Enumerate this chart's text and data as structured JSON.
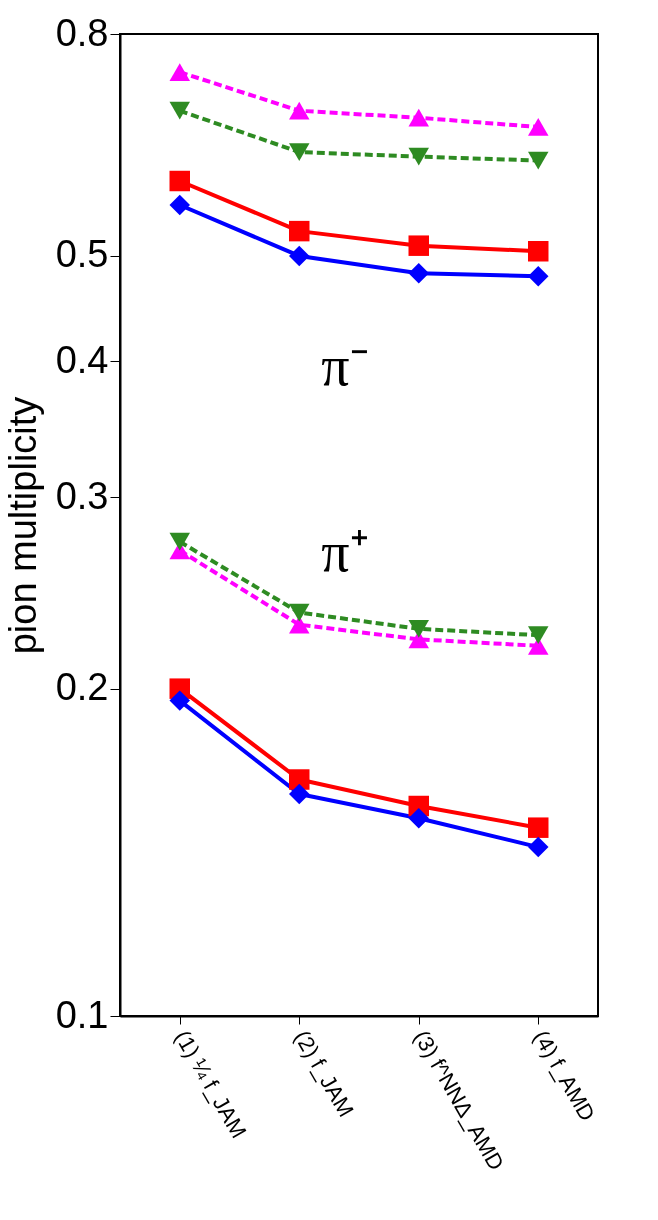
{
  "chart_data": {
    "type": "line",
    "ylabel": "pion multiplicity",
    "categories": [
      "(1) ¼ f_JAM",
      "(2) f_JAM",
      "(3) f^NNΔ_AMD",
      "(4) f_AMD"
    ],
    "log": "y",
    "ylim": [
      0.1,
      0.8
    ],
    "yticks": [
      0.1,
      0.2,
      0.3,
      0.4,
      0.5,
      0.8
    ],
    "grid": false,
    "annotations": [
      "π⁻",
      "π⁺"
    ],
    "series": [
      {
        "color": "#ff00ff",
        "marker": "triangle",
        "line_style": "dashed",
        "values": [
          0.738,
          0.68,
          0.67,
          0.657
        ]
      },
      {
        "color": "#2e8b22",
        "marker": "triangle-down",
        "line_style": "dashed",
        "values": [
          0.68,
          0.623,
          0.617,
          0.612
        ]
      },
      {
        "color": "#ff0000",
        "marker": "square",
        "line_style": "solid",
        "values": [
          0.586,
          0.527,
          0.511,
          0.505
        ]
      },
      {
        "color": "#0000ff",
        "marker": "diamond",
        "line_style": "solid",
        "values": [
          0.557,
          0.5,
          0.482,
          0.479
        ]
      },
      {
        "color": "#ff00ff",
        "marker": "triangle",
        "line_style": "dashed",
        "values": [
          0.268,
          0.229,
          0.222,
          0.219
        ]
      },
      {
        "color": "#2e8b22",
        "marker": "triangle-down",
        "line_style": "dashed",
        "values": [
          0.273,
          0.235,
          0.227,
          0.224
        ]
      },
      {
        "color": "#ff0000",
        "marker": "square",
        "line_style": "solid",
        "values": [
          0.2,
          0.165,
          0.156,
          0.149
        ]
      },
      {
        "color": "#0000ff",
        "marker": "diamond",
        "line_style": "solid",
        "values": [
          0.195,
          0.16,
          0.152,
          0.143
        ]
      }
    ]
  }
}
